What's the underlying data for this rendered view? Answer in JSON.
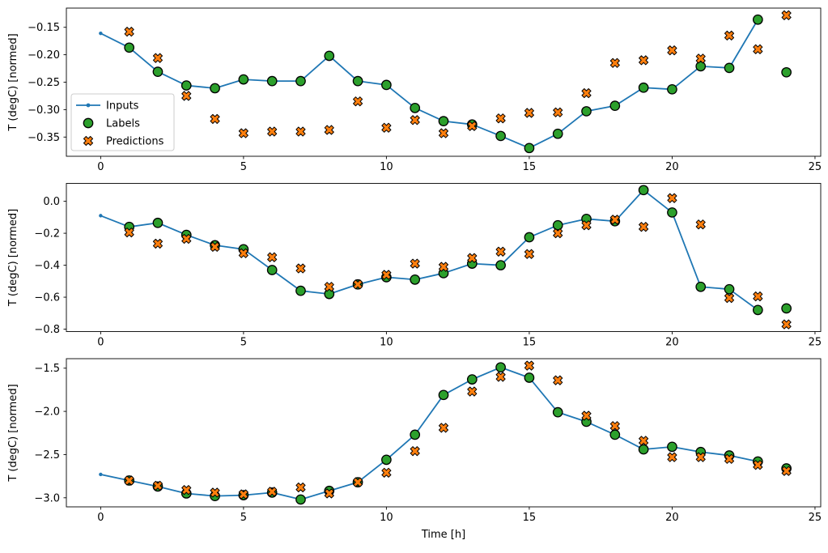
{
  "figure": {
    "xlabel": "Time [h]",
    "ylabel": "T (degC) [normed]",
    "colors": {
      "inputs": "#1f77b4",
      "labels": "#2ca02c",
      "predictions": "#ff7f0e",
      "marker_edge": "#000000",
      "axis": "#000000",
      "background": "#ffffff",
      "legend_border": "#cccccc"
    },
    "legend": {
      "position": "upper-left-inside-first-subplot",
      "items": [
        {
          "label": "Inputs",
          "marker": "line-dot"
        },
        {
          "label": "Labels",
          "marker": "circle"
        },
        {
          "label": "Predictions",
          "marker": "x"
        }
      ]
    }
  },
  "chart_data": [
    {
      "type": "line",
      "title": "",
      "ylabel": "T (degC) [normed]",
      "xlim": [
        -1.2,
        25.2
      ],
      "ylim": [
        -0.385,
        -0.115
      ],
      "xticks": [
        0,
        5,
        10,
        15,
        20,
        25
      ],
      "xtick_labels": [
        "0",
        "5",
        "10",
        "15",
        "20",
        "25"
      ],
      "yticks": [
        -0.15,
        -0.2,
        -0.25,
        -0.3,
        -0.35
      ],
      "ytick_labels": [
        "−0.15",
        "−0.20",
        "−0.25",
        "−0.30",
        "−0.35"
      ],
      "grid": false,
      "series": [
        {
          "name": "Inputs",
          "style": "line+dot",
          "x": [
            0,
            1,
            2,
            3,
            4,
            5,
            6,
            7,
            8,
            9,
            10,
            11,
            12,
            13,
            14,
            15,
            16,
            17,
            18,
            19,
            20,
            21,
            22,
            23
          ],
          "values": [
            -0.161,
            -0.187,
            -0.231,
            -0.256,
            -0.261,
            -0.245,
            -0.248,
            -0.248,
            -0.202,
            -0.248,
            -0.255,
            -0.297,
            -0.321,
            -0.327,
            -0.348,
            -0.37,
            -0.344,
            -0.303,
            -0.293,
            -0.26,
            -0.263,
            -0.221,
            -0.224,
            -0.136
          ]
        },
        {
          "name": "Labels",
          "style": "circle",
          "x": [
            1,
            2,
            3,
            4,
            5,
            6,
            7,
            8,
            9,
            10,
            11,
            12,
            13,
            14,
            15,
            16,
            17,
            18,
            19,
            20,
            21,
            22,
            23,
            24
          ],
          "values": [
            -0.187,
            -0.231,
            -0.256,
            -0.261,
            -0.245,
            -0.248,
            -0.248,
            -0.202,
            -0.248,
            -0.255,
            -0.297,
            -0.321,
            -0.327,
            -0.348,
            -0.37,
            -0.344,
            -0.303,
            -0.293,
            -0.26,
            -0.263,
            -0.221,
            -0.224,
            -0.136,
            -0.232
          ]
        },
        {
          "name": "Predictions",
          "style": "x",
          "x": [
            1,
            2,
            3,
            4,
            5,
            6,
            7,
            8,
            9,
            10,
            11,
            12,
            13,
            14,
            15,
            16,
            17,
            18,
            19,
            20,
            21,
            22,
            23,
            24
          ],
          "values": [
            -0.158,
            -0.206,
            -0.275,
            -0.317,
            -0.343,
            -0.34,
            -0.34,
            -0.337,
            -0.285,
            -0.333,
            -0.319,
            -0.343,
            -0.33,
            -0.316,
            -0.306,
            -0.305,
            -0.27,
            -0.215,
            -0.21,
            -0.192,
            -0.207,
            -0.165,
            -0.19,
            -0.128
          ]
        }
      ]
    },
    {
      "type": "line",
      "title": "",
      "ylabel": "T (degC) [normed]",
      "xlim": [
        -1.2,
        25.2
      ],
      "ylim": [
        -0.815,
        0.112
      ],
      "xticks": [
        0,
        5,
        10,
        15,
        20,
        25
      ],
      "xtick_labels": [
        "0",
        "5",
        "10",
        "15",
        "20",
        "25"
      ],
      "yticks": [
        0.0,
        -0.2,
        -0.4,
        -0.6,
        -0.8
      ],
      "ytick_labels": [
        "0.0",
        "−0.2",
        "−0.4",
        "−0.6",
        "−0.8"
      ],
      "grid": false,
      "series": [
        {
          "name": "Inputs",
          "style": "line+dot",
          "x": [
            0,
            1,
            2,
            3,
            4,
            5,
            6,
            7,
            8,
            9,
            10,
            11,
            12,
            13,
            14,
            15,
            16,
            17,
            18,
            19,
            20,
            21,
            22,
            23
          ],
          "values": [
            -0.09,
            -0.16,
            -0.135,
            -0.21,
            -0.275,
            -0.3,
            -0.43,
            -0.56,
            -0.58,
            -0.52,
            -0.475,
            -0.49,
            -0.45,
            -0.39,
            -0.4,
            -0.225,
            -0.15,
            -0.11,
            -0.125,
            0.07,
            -0.07,
            -0.535,
            -0.55,
            -0.68
          ]
        },
        {
          "name": "Labels",
          "style": "circle",
          "x": [
            1,
            2,
            3,
            4,
            5,
            6,
            7,
            8,
            9,
            10,
            11,
            12,
            13,
            14,
            15,
            16,
            17,
            18,
            19,
            20,
            21,
            22,
            23,
            24
          ],
          "values": [
            -0.16,
            -0.135,
            -0.21,
            -0.275,
            -0.3,
            -0.43,
            -0.56,
            -0.58,
            -0.52,
            -0.475,
            -0.49,
            -0.45,
            -0.39,
            -0.4,
            -0.225,
            -0.15,
            -0.11,
            -0.125,
            0.07,
            -0.07,
            -0.535,
            -0.55,
            -0.68,
            -0.67
          ]
        },
        {
          "name": "Predictions",
          "style": "x",
          "x": [
            1,
            2,
            3,
            4,
            5,
            6,
            7,
            8,
            9,
            10,
            11,
            12,
            13,
            14,
            15,
            16,
            17,
            18,
            19,
            20,
            21,
            22,
            23,
            24
          ],
          "values": [
            -0.195,
            -0.265,
            -0.235,
            -0.285,
            -0.325,
            -0.35,
            -0.42,
            -0.535,
            -0.52,
            -0.46,
            -0.39,
            -0.41,
            -0.355,
            -0.315,
            -0.33,
            -0.2,
            -0.15,
            -0.115,
            -0.16,
            0.02,
            -0.145,
            -0.605,
            -0.595,
            -0.77
          ]
        }
      ]
    },
    {
      "type": "line",
      "title": "",
      "ylabel": "T (degC) [normed]",
      "xlabel": "Time [h]",
      "xlim": [
        -1.2,
        25.2
      ],
      "ylim": [
        -3.105,
        -1.39
      ],
      "xticks": [
        0,
        5,
        10,
        15,
        20,
        25
      ],
      "xtick_labels": [
        "0",
        "5",
        "10",
        "15",
        "20",
        "25"
      ],
      "yticks": [
        -1.5,
        -2.0,
        -2.5,
        -3.0
      ],
      "ytick_labels": [
        "−1.5",
        "−2.0",
        "−2.5",
        "−3.0"
      ],
      "grid": false,
      "series": [
        {
          "name": "Inputs",
          "style": "line+dot",
          "x": [
            0,
            1,
            2,
            3,
            4,
            5,
            6,
            7,
            8,
            9,
            10,
            11,
            12,
            13,
            14,
            15,
            16,
            17,
            18,
            19,
            20,
            21,
            22,
            23
          ],
          "values": [
            -2.73,
            -2.8,
            -2.87,
            -2.95,
            -2.98,
            -2.97,
            -2.94,
            -3.02,
            -2.92,
            -2.82,
            -2.56,
            -2.27,
            -1.81,
            -1.63,
            -1.49,
            -1.61,
            -2.01,
            -2.12,
            -2.27,
            -2.44,
            -2.41,
            -2.47,
            -2.51,
            -2.58
          ]
        },
        {
          "name": "Labels",
          "style": "circle",
          "x": [
            1,
            2,
            3,
            4,
            5,
            6,
            7,
            8,
            9,
            10,
            11,
            12,
            13,
            14,
            15,
            16,
            17,
            18,
            19,
            20,
            21,
            22,
            23,
            24
          ],
          "values": [
            -2.8,
            -2.87,
            -2.95,
            -2.98,
            -2.97,
            -2.94,
            -3.02,
            -2.92,
            -2.82,
            -2.56,
            -2.27,
            -1.81,
            -1.63,
            -1.49,
            -1.61,
            -2.01,
            -2.12,
            -2.27,
            -2.44,
            -2.41,
            -2.47,
            -2.51,
            -2.58,
            -2.66
          ]
        },
        {
          "name": "Predictions",
          "style": "x",
          "x": [
            1,
            2,
            3,
            4,
            5,
            6,
            7,
            8,
            9,
            10,
            11,
            12,
            13,
            14,
            15,
            16,
            17,
            18,
            19,
            20,
            21,
            22,
            23,
            24
          ],
          "values": [
            -2.8,
            -2.86,
            -2.91,
            -2.94,
            -2.96,
            -2.93,
            -2.88,
            -2.95,
            -2.82,
            -2.71,
            -2.46,
            -2.19,
            -1.77,
            -1.6,
            -1.47,
            -1.64,
            -2.05,
            -2.17,
            -2.34,
            -2.53,
            -2.53,
            -2.55,
            -2.62,
            -2.69
          ]
        }
      ]
    }
  ]
}
